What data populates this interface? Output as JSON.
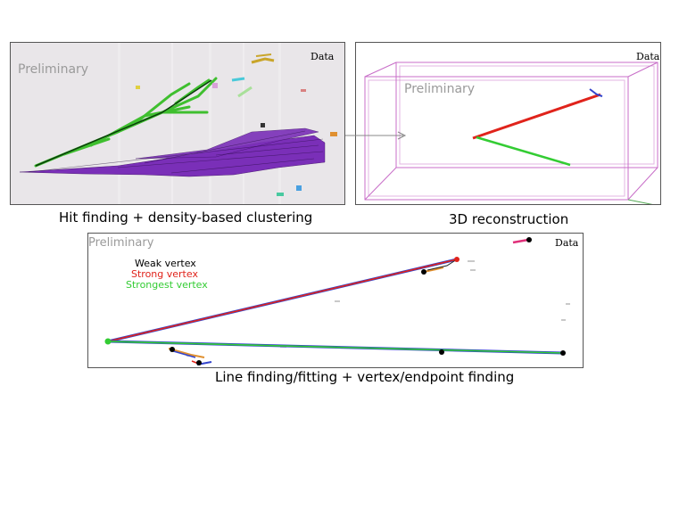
{
  "panels": {
    "hit_finding": {
      "watermark": "Preliminary",
      "data_tag": "Data",
      "caption": "Hit finding + density-based clustering"
    },
    "reconstruction_3d": {
      "watermark": "Preliminary",
      "data_tag": "Data",
      "caption": "3D reconstruction"
    },
    "line_finding": {
      "watermark": "Preliminary",
      "data_tag": "Data",
      "caption": "Line finding/fitting + vertex/endpoint finding",
      "legend": {
        "weak": "Weak vertex",
        "strong": "Strong vertex",
        "strongest": "Strongest vertex"
      }
    }
  },
  "colors": {
    "weak_vertex": "#000000",
    "strong_vertex": "#e0231b",
    "strongest_vertex": "#33cc33",
    "watermark": "#9a9a9a",
    "purple_cluster": "#7a2fb8",
    "green_cluster": "#3fbf2f"
  }
}
